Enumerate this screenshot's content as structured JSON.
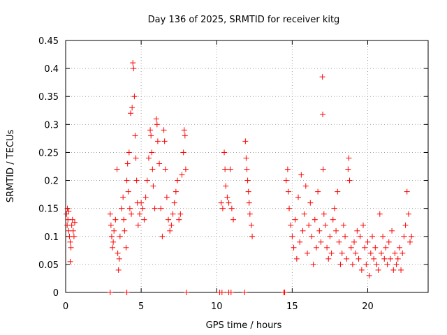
{
  "chart_data": {
    "type": "scatter",
    "title": "Day 136 of 2025, SRMTID for receiver kitg",
    "xlabel": "GPS time / hours",
    "ylabel": "SRMTID / TECUs",
    "xlim": [
      0,
      24
    ],
    "ylim": [
      0,
      0.45
    ],
    "xticks": [
      0,
      5,
      10,
      15,
      20
    ],
    "yticks": [
      0,
      0.05,
      0.1,
      0.15,
      0.2,
      0.25,
      0.3,
      0.35,
      0.4,
      0.45
    ],
    "xtick_labels": [
      "0",
      "5",
      "10",
      "15",
      "20"
    ],
    "ytick_labels": [
      "0",
      "0.05",
      "0.1",
      "0.15",
      "0.2",
      "0.25",
      "0.3",
      "0.35",
      "0.4",
      "0.45"
    ],
    "grid": true,
    "marker": "+",
    "color": "#ff0000",
    "series": [
      {
        "name": "SRMTID",
        "points": [
          [
            0.05,
            0.14
          ],
          [
            0.1,
            0.12
          ],
          [
            0.15,
            0.13
          ],
          [
            0.2,
            0.11
          ],
          [
            0.25,
            0.1
          ],
          [
            0.3,
            0.09
          ],
          [
            0.35,
            0.08
          ],
          [
            0.3,
            0.055
          ],
          [
            0.4,
            0.12
          ],
          [
            0.45,
            0.13
          ],
          [
            0.5,
            0.11
          ],
          [
            0.55,
            0.1
          ],
          [
            0.6,
            0.125
          ],
          [
            0.2,
            0.145
          ],
          [
            0.12,
            0.15
          ],
          [
            2.95,
            0.14
          ],
          [
            3.0,
            0.12
          ],
          [
            3.05,
            0.1
          ],
          [
            3.1,
            0.08
          ],
          [
            3.15,
            0.09
          ],
          [
            3.2,
            0.11
          ],
          [
            3.3,
            0.13
          ],
          [
            3.4,
            0.22
          ],
          [
            3.45,
            0.07
          ],
          [
            3.5,
            0.04
          ],
          [
            3.55,
            0.06
          ],
          [
            3.6,
            0.1
          ],
          [
            3.7,
            0.15
          ],
          [
            3.8,
            0.17
          ],
          [
            3.85,
            0.13
          ],
          [
            3.9,
            0.11
          ],
          [
            4.0,
            0.08
          ],
          [
            4.05,
            0.2
          ],
          [
            4.1,
            0.23
          ],
          [
            4.15,
            0.18
          ],
          [
            4.2,
            0.25
          ],
          [
            4.25,
            0.15
          ],
          [
            4.3,
            0.32
          ],
          [
            4.35,
            0.14
          ],
          [
            4.4,
            0.33
          ],
          [
            4.45,
            0.41
          ],
          [
            4.5,
            0.4
          ],
          [
            4.55,
            0.35
          ],
          [
            4.6,
            0.28
          ],
          [
            4.65,
            0.24
          ],
          [
            4.7,
            0.2
          ],
          [
            4.75,
            0.16
          ],
          [
            4.8,
            0.12
          ],
          [
            4.9,
            0.14
          ],
          [
            5.0,
            0.16
          ],
          [
            5.1,
            0.15
          ],
          [
            5.2,
            0.13
          ],
          [
            5.3,
            0.17
          ],
          [
            5.4,
            0.2
          ],
          [
            5.5,
            0.24
          ],
          [
            5.6,
            0.29
          ],
          [
            5.65,
            0.28
          ],
          [
            5.7,
            0.25
          ],
          [
            5.75,
            0.22
          ],
          [
            5.8,
            0.19
          ],
          [
            5.9,
            0.15
          ],
          [
            6.0,
            0.31
          ],
          [
            6.05,
            0.3
          ],
          [
            6.1,
            0.27
          ],
          [
            6.2,
            0.23
          ],
          [
            6.3,
            0.15
          ],
          [
            6.4,
            0.1
          ],
          [
            6.5,
            0.29
          ],
          [
            6.55,
            0.27
          ],
          [
            6.6,
            0.22
          ],
          [
            6.7,
            0.17
          ],
          [
            6.8,
            0.13
          ],
          [
            6.9,
            0.11
          ],
          [
            7.0,
            0.12
          ],
          [
            7.1,
            0.14
          ],
          [
            7.2,
            0.16
          ],
          [
            7.3,
            0.18
          ],
          [
            7.4,
            0.2
          ],
          [
            7.5,
            0.13
          ],
          [
            7.6,
            0.14
          ],
          [
            7.7,
            0.21
          ],
          [
            7.8,
            0.25
          ],
          [
            7.85,
            0.29
          ],
          [
            7.9,
            0.28
          ],
          [
            7.95,
            0.22
          ],
          [
            10.3,
            0.16
          ],
          [
            10.4,
            0.15
          ],
          [
            10.5,
            0.25
          ],
          [
            10.55,
            0.22
          ],
          [
            10.6,
            0.19
          ],
          [
            10.7,
            0.17
          ],
          [
            10.8,
            0.16
          ],
          [
            10.9,
            0.22
          ],
          [
            11.0,
            0.15
          ],
          [
            11.1,
            0.13
          ],
          [
            11.9,
            0.27
          ],
          [
            11.95,
            0.24
          ],
          [
            12.0,
            0.22
          ],
          [
            12.05,
            0.2
          ],
          [
            12.1,
            0.18
          ],
          [
            12.15,
            0.16
          ],
          [
            12.2,
            0.14
          ],
          [
            12.3,
            0.12
          ],
          [
            12.35,
            0.1
          ],
          [
            14.6,
            0.2
          ],
          [
            14.7,
            0.22
          ],
          [
            14.75,
            0.18
          ],
          [
            14.8,
            0.15
          ],
          [
            14.9,
            0.12
          ],
          [
            15.0,
            0.1
          ],
          [
            15.1,
            0.08
          ],
          [
            15.2,
            0.13
          ],
          [
            15.3,
            0.06
          ],
          [
            15.4,
            0.17
          ],
          [
            15.5,
            0.09
          ],
          [
            15.6,
            0.21
          ],
          [
            15.7,
            0.11
          ],
          [
            15.8,
            0.14
          ],
          [
            15.9,
            0.19
          ],
          [
            16.0,
            0.07
          ],
          [
            16.1,
            0.12
          ],
          [
            16.2,
            0.16
          ],
          [
            16.3,
            0.1
          ],
          [
            16.4,
            0.05
          ],
          [
            16.5,
            0.13
          ],
          [
            16.6,
            0.08
          ],
          [
            16.7,
            0.18
          ],
          [
            16.8,
            0.11
          ],
          [
            16.9,
            0.09
          ],
          [
            17.0,
            0.385
          ],
          [
            17.02,
            0.318
          ],
          [
            17.05,
            0.22
          ],
          [
            17.1,
            0.14
          ],
          [
            17.2,
            0.12
          ],
          [
            17.3,
            0.08
          ],
          [
            17.4,
            0.06
          ],
          [
            17.5,
            0.1
          ],
          [
            17.6,
            0.07
          ],
          [
            17.7,
            0.13
          ],
          [
            17.8,
            0.15
          ],
          [
            17.9,
            0.11
          ],
          [
            18.0,
            0.18
          ],
          [
            18.1,
            0.09
          ],
          [
            18.2,
            0.05
          ],
          [
            18.3,
            0.07
          ],
          [
            18.4,
            0.12
          ],
          [
            18.5,
            0.1
          ],
          [
            18.6,
            0.06
          ],
          [
            18.7,
            0.22
          ],
          [
            18.75,
            0.24
          ],
          [
            18.8,
            0.2
          ],
          [
            18.9,
            0.08
          ],
          [
            19.0,
            0.05
          ],
          [
            19.1,
            0.09
          ],
          [
            19.2,
            0.07
          ],
          [
            19.3,
            0.11
          ],
          [
            19.4,
            0.06
          ],
          [
            19.5,
            0.1
          ],
          [
            19.6,
            0.04
          ],
          [
            19.7,
            0.12
          ],
          [
            19.8,
            0.08
          ],
          [
            19.9,
            0.05
          ],
          [
            20.0,
            0.09
          ],
          [
            20.1,
            0.03
          ],
          [
            20.2,
            0.07
          ],
          [
            20.3,
            0.1
          ],
          [
            20.4,
            0.06
          ],
          [
            20.5,
            0.08
          ],
          [
            20.6,
            0.05
          ],
          [
            20.7,
            0.04
          ],
          [
            20.8,
            0.14
          ],
          [
            20.9,
            0.07
          ],
          [
            21.0,
            0.1
          ],
          [
            21.1,
            0.06
          ],
          [
            21.2,
            0.08
          ],
          [
            21.3,
            0.05
          ],
          [
            21.4,
            0.09
          ],
          [
            21.5,
            0.06
          ],
          [
            21.6,
            0.11
          ],
          [
            21.7,
            0.04
          ],
          [
            21.8,
            0.07
          ],
          [
            21.9,
            0.05
          ],
          [
            22.0,
            0.06
          ],
          [
            22.1,
            0.08
          ],
          [
            22.2,
            0.04
          ],
          [
            22.3,
            0.07
          ],
          [
            22.4,
            0.1
          ],
          [
            22.5,
            0.12
          ],
          [
            22.6,
            0.18
          ],
          [
            22.7,
            0.14
          ],
          [
            22.8,
            0.09
          ],
          [
            22.9,
            0.1
          ],
          [
            2.95,
            0
          ],
          [
            4.05,
            0
          ],
          [
            8.0,
            0
          ],
          [
            10.2,
            0
          ],
          [
            10.35,
            0
          ],
          [
            10.8,
            0
          ],
          [
            10.95,
            0
          ],
          [
            11.85,
            0
          ],
          [
            14.45,
            0
          ],
          [
            14.5,
            0
          ]
        ]
      }
    ]
  }
}
